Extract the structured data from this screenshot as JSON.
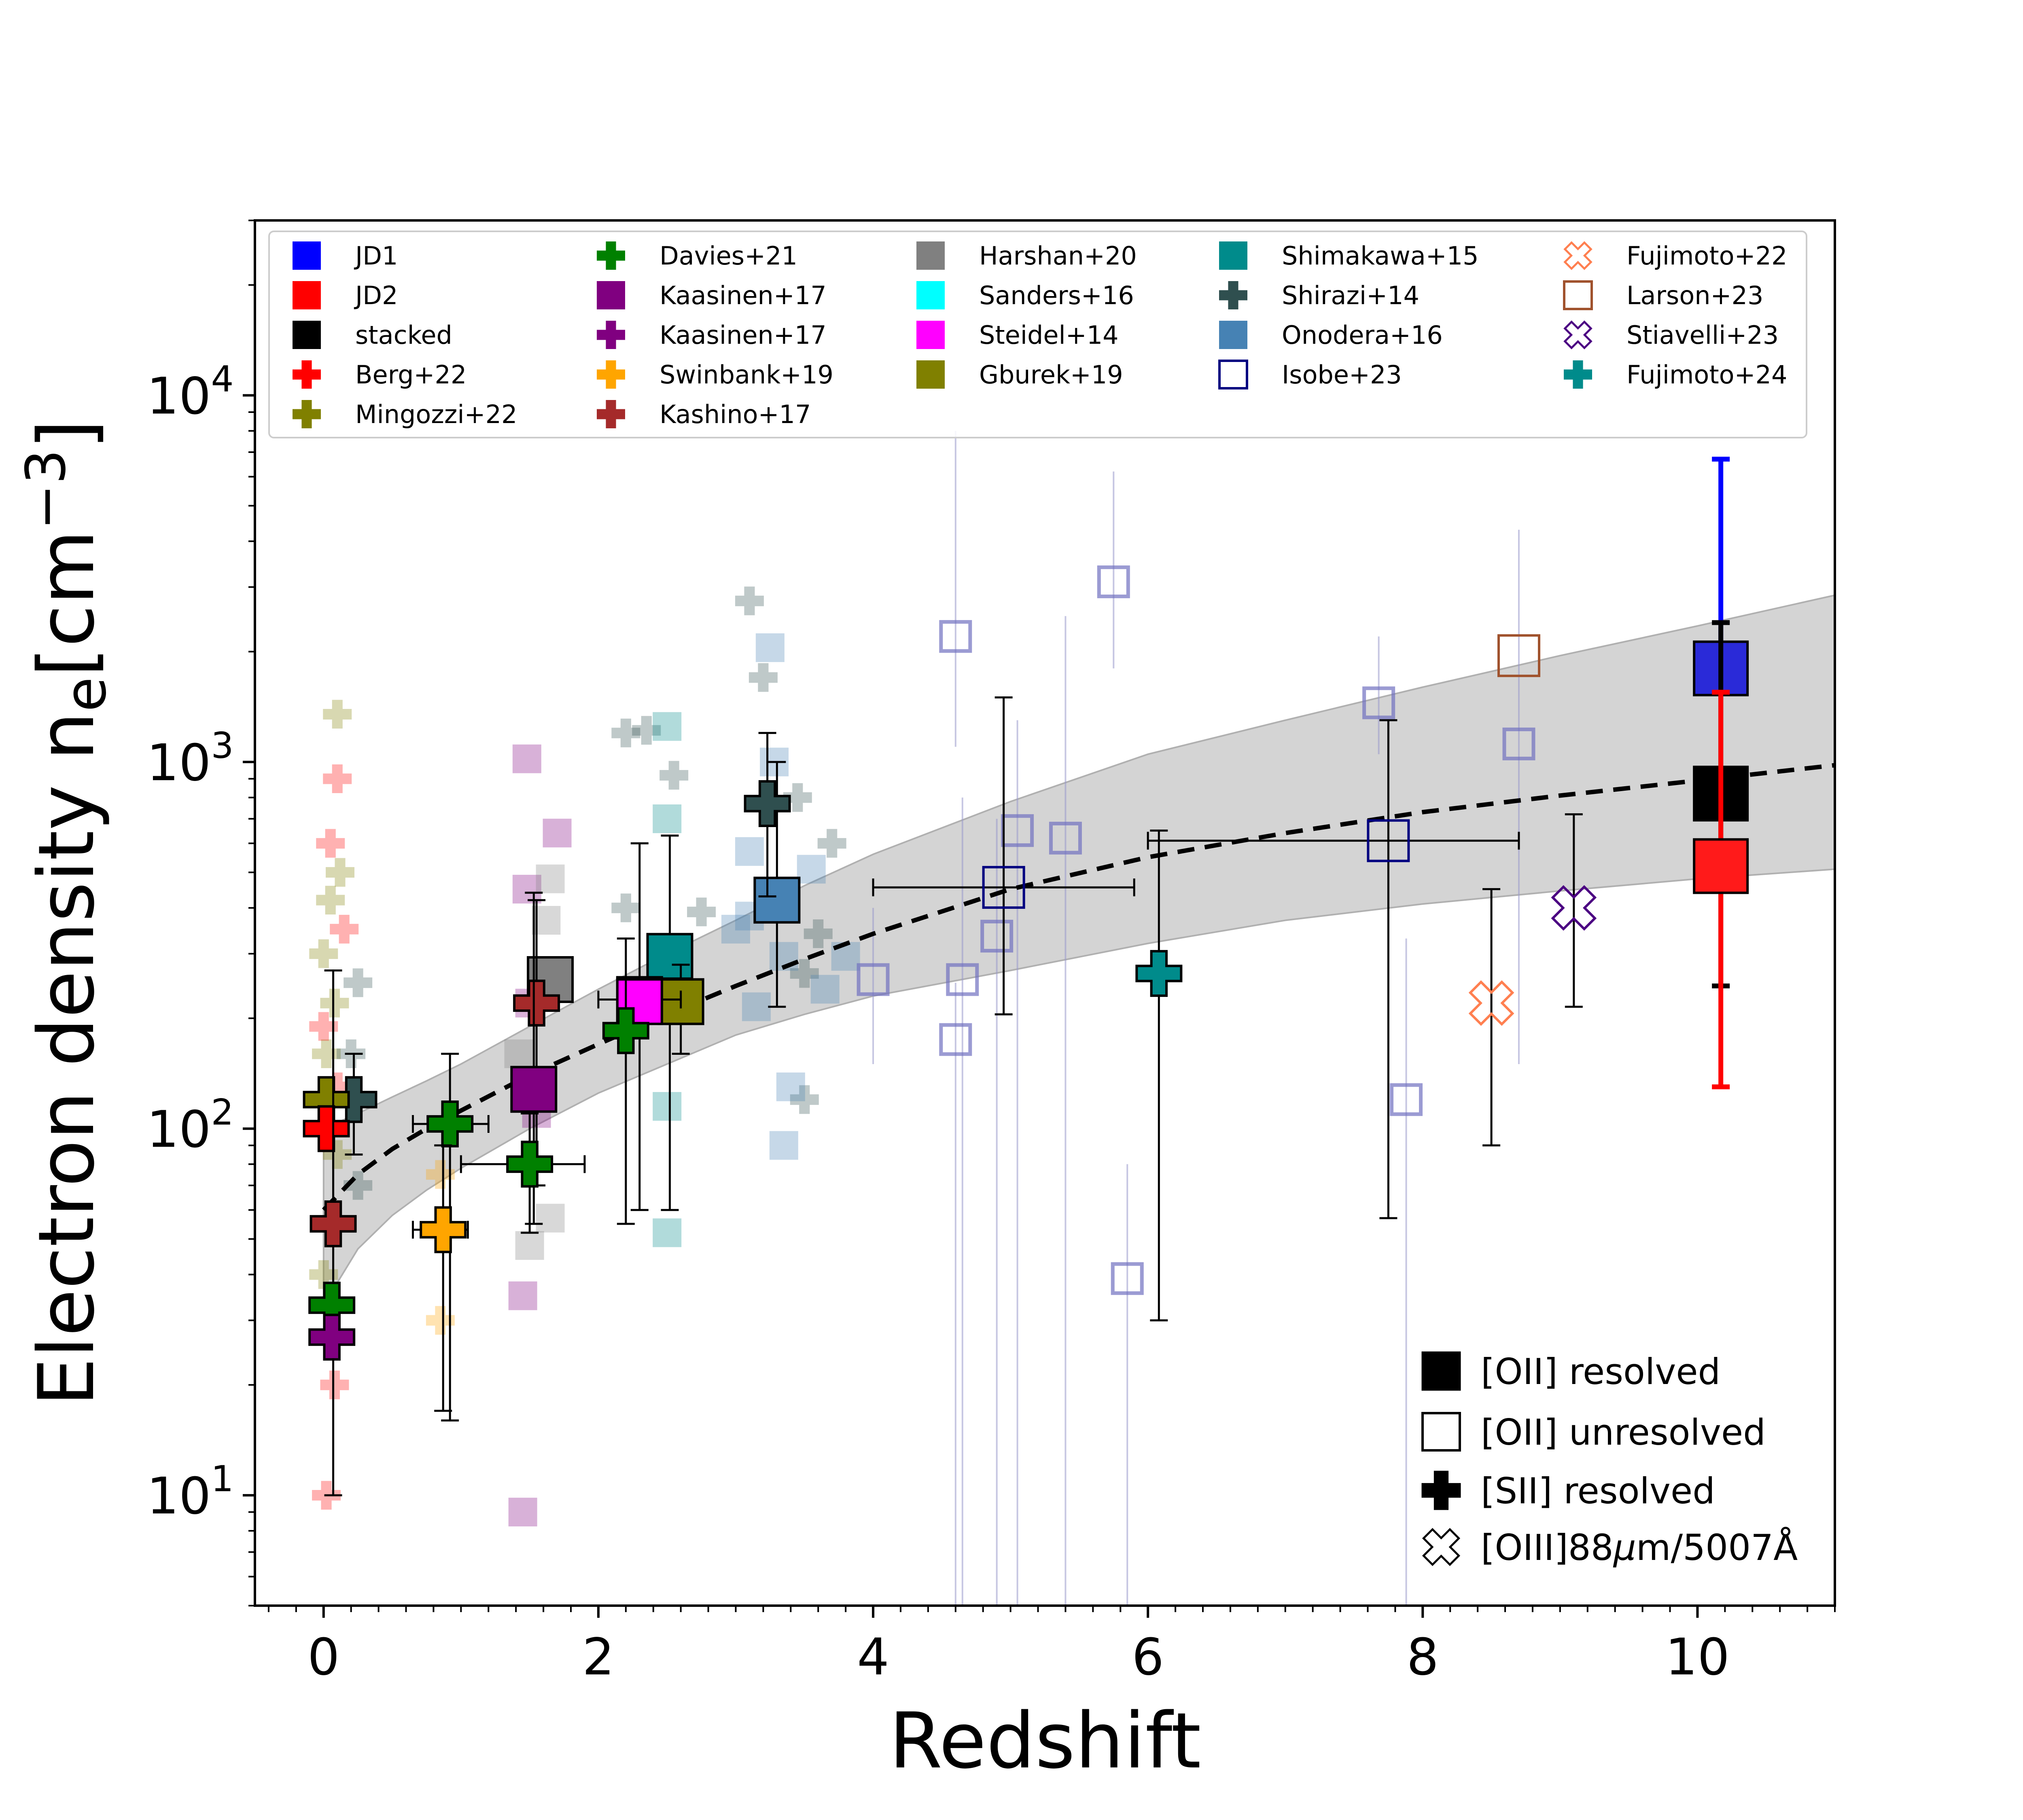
{
  "chart_data": {
    "type": "scatter",
    "title": "",
    "xlabel": "Redshift",
    "ylabel_main": "Electron density n",
    "ylabel_sub": "e",
    "ylabel_unit_open": "[cm",
    "ylabel_unit_exp": "−3",
    "ylabel_unit_close": "]",
    "xlim": [
      -0.5,
      11.0
    ],
    "ylim": [
      5,
      30000
    ],
    "yscale": "log",
    "x_ticks": [
      "0",
      "2",
      "4",
      "6",
      "8",
      "10"
    ],
    "y_ticks": [
      {
        "base": "10",
        "exp": "1"
      },
      {
        "base": "10",
        "exp": "2"
      },
      {
        "base": "10",
        "exp": "3"
      },
      {
        "base": "10",
        "exp": "4"
      }
    ],
    "fit": {
      "x": [
        0.0,
        0.25,
        0.5,
        0.75,
        1.0,
        1.5,
        2.0,
        2.5,
        3.0,
        3.5,
        4.0,
        5.0,
        6.0,
        7.0,
        8.0,
        9.0,
        10.0,
        11.0
      ],
      "y": [
        60,
        75,
        88,
        100,
        112,
        140,
        170,
        205,
        245,
        290,
        340,
        450,
        550,
        640,
        730,
        810,
        890,
        980
      ],
      "band_low": [
        33,
        47,
        58,
        68,
        78,
        100,
        125,
        150,
        180,
        205,
        230,
        270,
        320,
        370,
        410,
        445,
        480,
        510
      ],
      "band_high": [
        100,
        110,
        122,
        135,
        150,
        190,
        240,
        300,
        370,
        460,
        560,
        780,
        1050,
        1300,
        1600,
        1950,
        2350,
        2850
      ]
    },
    "legend": [
      {
        "label": "JD1",
        "color": "#0000ff",
        "marker": "square-filled"
      },
      {
        "label": "JD2",
        "color": "#ff0000",
        "marker": "square-filled"
      },
      {
        "label": "stacked",
        "color": "#000000",
        "marker": "square-filled"
      },
      {
        "label": "Berg+22",
        "color": "#ff0000",
        "marker": "plus-filled"
      },
      {
        "label": "Mingozzi+22",
        "color": "#808000",
        "marker": "plus-filled"
      },
      {
        "label": "Davies+21",
        "color": "#008000",
        "marker": "plus-filled"
      },
      {
        "label": "Kaasinen+17",
        "color": "#800080",
        "marker": "square-filled"
      },
      {
        "label": "Kaasinen+17",
        "color": "#800080",
        "marker": "plus-filled"
      },
      {
        "label": "Swinbank+19",
        "color": "#ffa500",
        "marker": "plus-filled"
      },
      {
        "label": "Kashino+17",
        "color": "#a52a2a",
        "marker": "plus-filled"
      },
      {
        "label": "Harshan+20",
        "color": "#808080",
        "marker": "square-filled"
      },
      {
        "label": "Sanders+16",
        "color": "#00ffff",
        "marker": "square-filled"
      },
      {
        "label": "Steidel+14",
        "color": "#ff00ff",
        "marker": "square-filled"
      },
      {
        "label": "Gburek+19",
        "color": "#808000",
        "marker": "square-filled"
      },
      {
        "label": "Shimakawa+15",
        "color": "#008b8b",
        "marker": "square-filled"
      },
      {
        "label": "Shirazi+14",
        "color": "#2f4f4f",
        "marker": "plus-filled"
      },
      {
        "label": "Onodera+16",
        "color": "#4682b4",
        "marker": "square-filled"
      },
      {
        "label": "Isobe+23",
        "color": "#000080",
        "marker": "square-open"
      },
      {
        "label": "Fujimoto+22",
        "color": "#ff7f50",
        "marker": "x-open"
      },
      {
        "label": "Larson+23",
        "color": "#a0522d",
        "marker": "square-open"
      },
      {
        "label": "Stiavelli+23",
        "color": "#4b0082",
        "marker": "x-open"
      },
      {
        "label": "Fujimoto+24",
        "color": "#008b8b",
        "marker": "plus-filled"
      }
    ],
    "marker_legend": [
      {
        "label": "[OII] resolved",
        "marker": "square-filled"
      },
      {
        "label": "[OII] unresolved",
        "marker": "square-open"
      },
      {
        "label": "[SII] resolved",
        "marker": "plus-filled"
      },
      {
        "label_main": "[OIII]88",
        "label_mu": "μ",
        "label_rest": "m/5007Å",
        "marker": "x-open"
      }
    ],
    "main_points": [
      {
        "name": "JD1",
        "x": 10.17,
        "y": 1800,
        "ylo": 1550,
        "yhi": 6700,
        "color": "#2a2ad8",
        "err_color": "#0000ff",
        "marker": "square-filled"
      },
      {
        "name": "stacked",
        "x": 10.17,
        "y": 820,
        "ylo": 245,
        "yhi": 2400,
        "color": "#000000",
        "err_color": "#000000",
        "marker": "square-filled"
      },
      {
        "name": "JD2",
        "x": 10.17,
        "y": 520,
        "ylo": 130,
        "yhi": 1550,
        "color": "#ff1a1a",
        "err_color": "#ff0000",
        "marker": "square-filled"
      },
      {
        "name": "Larson+23",
        "x": 8.7,
        "y": 1950,
        "color": "#a0522d",
        "marker": "square-open"
      },
      {
        "name": "Isobe+23",
        "x": 7.75,
        "y": 610,
        "ylo": 57,
        "yhi": 1300,
        "xlo": 6.0,
        "xhi": 8.7,
        "color": "#000080",
        "marker": "square-open"
      },
      {
        "name": "Isobe+23",
        "x": 4.95,
        "y": 455,
        "ylo": 205,
        "yhi": 1500,
        "xlo": 4.0,
        "xhi": 5.9,
        "color": "#000080",
        "marker": "square-open"
      },
      {
        "name": "Stiavelli+23",
        "x": 9.1,
        "y": 400,
        "ylo": 215,
        "yhi": 720,
        "color": "#4b0082",
        "marker": "x-open"
      },
      {
        "name": "Fujimoto+22",
        "x": 8.5,
        "y": 220,
        "ylo": 90,
        "yhi": 450,
        "color": "#ff7f50",
        "marker": "x-open"
      },
      {
        "name": "Fujimoto+24",
        "x": 6.08,
        "y": 265,
        "ylo": 30,
        "yhi": 650,
        "color": "#008b8b",
        "marker": "plus-filled"
      },
      {
        "name": "Onodera+16",
        "x": 3.3,
        "y": 420,
        "ylo": 215,
        "yhi": 1000,
        "color": "#4682b4",
        "marker": "square-filled"
      },
      {
        "name": "Shirazi+14",
        "x": 3.23,
        "y": 770,
        "ylo": 430,
        "yhi": 1200,
        "color": "#2f4f4f",
        "marker": "plus-filled"
      },
      {
        "name": "Shimakawa+15",
        "x": 2.52,
        "y": 295,
        "ylo": 60,
        "yhi": 630,
        "color": "#008b8b",
        "marker": "square-filled"
      },
      {
        "name": "Gburek+19",
        "x": 2.6,
        "y": 222,
        "ylo": 160,
        "yhi": 280,
        "color": "#808000",
        "marker": "square-filled"
      },
      {
        "name": "Sanders+16",
        "x": 2.3,
        "y": 225,
        "ylo": 60,
        "yhi": 600,
        "xlo": 2.0,
        "xhi": 2.6,
        "color": "#00ffff",
        "marker": "square-filled"
      },
      {
        "name": "Steidel+14",
        "x": 2.3,
        "y": 222,
        "color": "#ff00ff",
        "marker": "square-filled"
      },
      {
        "name": "Davies+21",
        "x": 2.2,
        "y": 185,
        "ylo": 55,
        "yhi": 330,
        "color": "#008000",
        "marker": "plus-filled"
      },
      {
        "name": "Harshan+20",
        "x": 1.65,
        "y": 255,
        "color": "#808080",
        "marker": "square-filled"
      },
      {
        "name": "Kashino+17",
        "x": 1.55,
        "y": 220,
        "ylo": 70,
        "yhi": 420,
        "color": "#a52a2a",
        "marker": "plus-filled"
      },
      {
        "name": "Kaasinen+17",
        "x": 1.53,
        "y": 128,
        "ylo": 55,
        "yhi": 440,
        "color": "#800080",
        "marker": "square-filled"
      },
      {
        "name": "Davies+21",
        "x": 1.5,
        "y": 80,
        "ylo": 52,
        "yhi": 110,
        "xlo": 1.0,
        "xhi": 1.9,
        "color": "#008000",
        "marker": "plus-filled"
      },
      {
        "name": "Davies+21",
        "x": 0.92,
        "y": 103,
        "ylo": 16,
        "yhi": 160,
        "xlo": 0.65,
        "xhi": 1.2,
        "color": "#008000",
        "marker": "plus-filled"
      },
      {
        "name": "Swinbank+19",
        "x": 0.87,
        "y": 53,
        "ylo": 17,
        "yhi": 90,
        "xlo": 0.65,
        "xhi": 1.05,
        "color": "#ffa500",
        "marker": "plus-filled"
      },
      {
        "name": "Shirazi+14",
        "x": 0.22,
        "y": 120,
        "ylo": 85,
        "yhi": 160,
        "color": "#2f4f4f",
        "marker": "plus-filled"
      },
      {
        "name": "Mingozzi+22",
        "x": 0.02,
        "y": 120,
        "color": "#808000",
        "marker": "plus-filled"
      },
      {
        "name": "Berg+22",
        "x": 0.02,
        "y": 100,
        "color": "#ff0000",
        "marker": "plus-filled"
      },
      {
        "name": "Kashino+17",
        "x": 0.07,
        "y": 55,
        "ylo": 10,
        "yhi": 270,
        "color": "#a52a2a",
        "marker": "plus-filled"
      },
      {
        "name": "Davies+21",
        "x": 0.06,
        "y": 33,
        "color": "#008000",
        "marker": "plus-filled"
      },
      {
        "name": "Kaasinen+17",
        "x": 0.06,
        "y": 27,
        "color": "#800080",
        "marker": "plus-filled"
      }
    ],
    "faint_points": [
      {
        "x": 0.1,
        "y": 1350,
        "c": "#808000",
        "m": "plus"
      },
      {
        "x": 0.12,
        "y": 500,
        "c": "#808000",
        "m": "plus"
      },
      {
        "x": 0.05,
        "y": 420,
        "c": "#808000",
        "m": "plus"
      },
      {
        "x": 0.0,
        "y": 300,
        "c": "#808000",
        "m": "plus"
      },
      {
        "x": 0.08,
        "y": 220,
        "c": "#808000",
        "m": "plus"
      },
      {
        "x": 0.02,
        "y": 160,
        "c": "#808000",
        "m": "plus"
      },
      {
        "x": 0.1,
        "y": 85,
        "c": "#808000",
        "m": "plus"
      },
      {
        "x": 0.0,
        "y": 40,
        "c": "#808000",
        "m": "plus"
      },
      {
        "x": 0.1,
        "y": 900,
        "c": "#ff0000",
        "m": "plus"
      },
      {
        "x": 0.05,
        "y": 600,
        "c": "#ff0000",
        "m": "plus"
      },
      {
        "x": 0.15,
        "y": 350,
        "c": "#ff0000",
        "m": "plus"
      },
      {
        "x": 0.0,
        "y": 190,
        "c": "#ff0000",
        "m": "plus"
      },
      {
        "x": 0.1,
        "y": 130,
        "c": "#ff0000",
        "m": "plus"
      },
      {
        "x": 0.08,
        "y": 20,
        "c": "#ff0000",
        "m": "plus"
      },
      {
        "x": 0.02,
        "y": 10,
        "c": "#ff0000",
        "m": "plus"
      },
      {
        "x": 0.25,
        "y": 250,
        "c": "#2f4f4f",
        "m": "plus"
      },
      {
        "x": 0.2,
        "y": 160,
        "c": "#2f4f4f",
        "m": "plus"
      },
      {
        "x": 0.25,
        "y": 70,
        "c": "#2f4f4f",
        "m": "plus"
      },
      {
        "x": 0.85,
        "y": 75,
        "c": "#ffa500",
        "m": "plus"
      },
      {
        "x": 0.85,
        "y": 30,
        "c": "#ffa500",
        "m": "plus"
      },
      {
        "x": 1.48,
        "y": 1020,
        "c": "#800080",
        "m": "sq"
      },
      {
        "x": 1.7,
        "y": 640,
        "c": "#800080",
        "m": "sq"
      },
      {
        "x": 1.48,
        "y": 450,
        "c": "#800080",
        "m": "sq"
      },
      {
        "x": 1.5,
        "y": 220,
        "c": "#800080",
        "m": "sq"
      },
      {
        "x": 1.55,
        "y": 110,
        "c": "#800080",
        "m": "sq"
      },
      {
        "x": 1.45,
        "y": 35,
        "c": "#800080",
        "m": "sq"
      },
      {
        "x": 1.45,
        "y": 9,
        "c": "#800080",
        "m": "sq"
      },
      {
        "x": 1.65,
        "y": 480,
        "c": "#808080",
        "m": "sq"
      },
      {
        "x": 1.62,
        "y": 370,
        "c": "#808080",
        "m": "sq"
      },
      {
        "x": 1.42,
        "y": 160,
        "c": "#808080",
        "m": "sq"
      },
      {
        "x": 1.65,
        "y": 57,
        "c": "#808080",
        "m": "sq"
      },
      {
        "x": 1.5,
        "y": 48,
        "c": "#808080",
        "m": "sq"
      },
      {
        "x": 2.2,
        "y": 1200,
        "c": "#2f4f4f",
        "m": "plus"
      },
      {
        "x": 2.35,
        "y": 1220,
        "c": "#2f4f4f",
        "m": "plus"
      },
      {
        "x": 2.55,
        "y": 920,
        "c": "#2f4f4f",
        "m": "plus"
      },
      {
        "x": 2.2,
        "y": 400,
        "c": "#2f4f4f",
        "m": "plus"
      },
      {
        "x": 2.75,
        "y": 390,
        "c": "#2f4f4f",
        "m": "plus"
      },
      {
        "x": 3.1,
        "y": 2750,
        "c": "#2f4f4f",
        "m": "plus"
      },
      {
        "x": 3.2,
        "y": 1700,
        "c": "#2f4f4f",
        "m": "plus"
      },
      {
        "x": 3.45,
        "y": 800,
        "c": "#2f4f4f",
        "m": "plus"
      },
      {
        "x": 3.7,
        "y": 600,
        "c": "#2f4f4f",
        "m": "plus"
      },
      {
        "x": 3.6,
        "y": 340,
        "c": "#2f4f4f",
        "m": "plus"
      },
      {
        "x": 3.5,
        "y": 265,
        "c": "#2f4f4f",
        "m": "plus"
      },
      {
        "x": 3.5,
        "y": 120,
        "c": "#2f4f4f",
        "m": "plus"
      },
      {
        "x": 2.5,
        "y": 1250,
        "c": "#008b8b",
        "m": "sq"
      },
      {
        "x": 2.5,
        "y": 700,
        "c": "#008b8b",
        "m": "sq"
      },
      {
        "x": 2.5,
        "y": 115,
        "c": "#008b8b",
        "m": "sq"
      },
      {
        "x": 2.5,
        "y": 52,
        "c": "#008b8b",
        "m": "sq"
      },
      {
        "x": 3.25,
        "y": 2050,
        "c": "#4682b4",
        "m": "sq"
      },
      {
        "x": 3.28,
        "y": 1000,
        "c": "#4682b4",
        "m": "sq"
      },
      {
        "x": 3.1,
        "y": 570,
        "c": "#4682b4",
        "m": "sq"
      },
      {
        "x": 3.55,
        "y": 510,
        "c": "#4682b4",
        "m": "sq"
      },
      {
        "x": 3.1,
        "y": 380,
        "c": "#4682b4",
        "m": "sq"
      },
      {
        "x": 3.0,
        "y": 350,
        "c": "#4682b4",
        "m": "sq"
      },
      {
        "x": 3.35,
        "y": 295,
        "c": "#4682b4",
        "m": "sq"
      },
      {
        "x": 3.65,
        "y": 240,
        "c": "#4682b4",
        "m": "sq"
      },
      {
        "x": 3.15,
        "y": 215,
        "c": "#4682b4",
        "m": "sq"
      },
      {
        "x": 3.4,
        "y": 130,
        "c": "#4682b4",
        "m": "sq"
      },
      {
        "x": 3.35,
        "y": 90,
        "c": "#4682b4",
        "m": "sq"
      },
      {
        "x": 3.8,
        "y": 295,
        "c": "#4682b4",
        "m": "sq"
      }
    ],
    "faint_isobe": [
      {
        "x": 4.6,
        "y": 2200,
        "ylo": 1100,
        "yhi": 8000
      },
      {
        "x": 5.75,
        "y": 3100,
        "ylo": 1800,
        "yhi": 6200
      },
      {
        "x": 7.68,
        "y": 1450,
        "ylo": 1050,
        "yhi": 2200
      },
      {
        "x": 8.7,
        "y": 1120,
        "ylo": 150,
        "yhi": 4300
      },
      {
        "x": 5.05,
        "y": 650,
        "ylo": 5,
        "yhi": 1300
      },
      {
        "x": 5.4,
        "y": 620,
        "ylo": 5,
        "yhi": 2500
      },
      {
        "x": 4.9,
        "y": 335,
        "ylo": 5,
        "yhi": 700
      },
      {
        "x": 4.65,
        "y": 255,
        "ylo": 5,
        "yhi": 800
      },
      {
        "x": 4.6,
        "y": 175,
        "ylo": 5,
        "yhi": 250
      },
      {
        "x": 4.0,
        "y": 255,
        "ylo": 150,
        "yhi": 400
      },
      {
        "x": 5.85,
        "y": 39,
        "ylo": 5,
        "yhi": 80
      },
      {
        "x": 7.88,
        "y": 120,
        "ylo": 5,
        "yhi": 330
      }
    ]
  }
}
